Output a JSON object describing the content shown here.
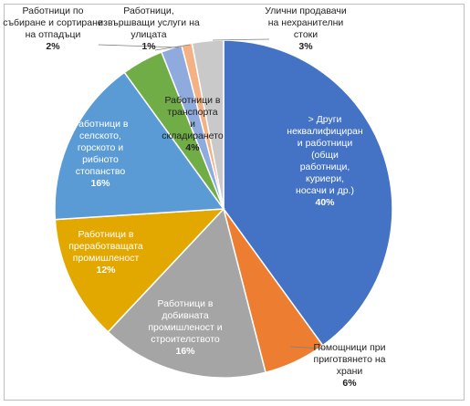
{
  "chart_data": {
    "type": "pie",
    "title": "",
    "slices": [
      {
        "label": "> Други неквалифициран и работници (общи работници, куриери, носачи и др.)",
        "value": 40,
        "value_label": "40%",
        "color": "#4472c4"
      },
      {
        "label": "Помощници при приготвянето на храни",
        "value": 6,
        "value_label": "6%",
        "color": "#ed7d31"
      },
      {
        "label": "Работници в добивната промишленост и строителството",
        "value": 16,
        "value_label": "16%",
        "color": "#a5a5a5"
      },
      {
        "label": "Работници в преработващата промишленост",
        "value": 12,
        "value_label": "12%",
        "color": "#e3a800"
      },
      {
        "label": "Работници в селското, горското и рибното стопанство",
        "value": 16,
        "value_label": "16%",
        "color": "#5b9bd5"
      },
      {
        "label": "Работници в транспорта и складирането",
        "value": 4,
        "value_label": "4%",
        "color": "#70ad47"
      },
      {
        "label": "Работници по събиране и сортиране на отпадъци",
        "value": 2,
        "value_label": "2%",
        "color": "#8faadc"
      },
      {
        "label": "Работници, извършващи услуги на улицата",
        "value": 1,
        "value_label": "1%",
        "color": "#f4b183"
      },
      {
        "label": "Улични продавачи на нехранителни стоки",
        "value": 3,
        "value_label": "3%",
        "color": "#c9c9c9"
      }
    ]
  }
}
